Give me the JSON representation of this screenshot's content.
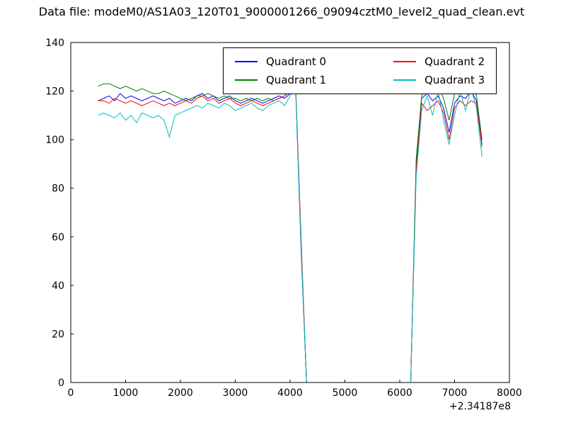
{
  "title": "Data file: modeM0/AS1A03_120T01_9000001266_09094cztM0_level2_quad_clean.evt",
  "chart_data": {
    "type": "line",
    "xlabel": "",
    "ylabel": "",
    "xlim": [
      0,
      8000
    ],
    "ylim": [
      0,
      140
    ],
    "xticks": [
      0,
      1000,
      2000,
      3000,
      4000,
      5000,
      6000,
      7000,
      8000
    ],
    "yticks": [
      0,
      20,
      40,
      60,
      80,
      100,
      120,
      140
    ],
    "x_offset_label": "+2.34187e8",
    "grid": false,
    "legend_position": "upper center",
    "x": [
      500,
      600,
      700,
      800,
      900,
      1000,
      1100,
      1200,
      1300,
      1400,
      1500,
      1600,
      1700,
      1800,
      1900,
      2000,
      2100,
      2200,
      2300,
      2400,
      2500,
      2600,
      2700,
      2800,
      2900,
      3000,
      3100,
      3200,
      3300,
      3400,
      3500,
      3600,
      3700,
      3800,
      3900,
      4000,
      4100,
      4200,
      4300,
      4400,
      4500,
      4600,
      4700,
      4800,
      4900,
      5000,
      5100,
      5200,
      5300,
      5400,
      5500,
      5600,
      5700,
      5800,
      5900,
      6000,
      6100,
      6200,
      6300,
      6400,
      6500,
      6600,
      6700,
      6800,
      6900,
      7000,
      7100,
      7200,
      7300,
      7400,
      7500
    ],
    "series": [
      {
        "name": "Quadrant 0",
        "color": "#0000ff",
        "values": [
          116,
          117,
          118,
          116,
          119,
          117,
          118,
          117,
          116,
          117,
          118,
          117,
          116,
          117,
          115,
          116,
          117,
          116,
          118,
          119,
          117,
          118,
          116,
          117,
          118,
          116,
          115,
          116,
          117,
          116,
          115,
          116,
          117,
          118,
          117,
          119,
          122,
          55,
          0,
          0,
          0,
          0,
          0,
          0,
          0,
          0,
          0,
          0,
          0,
          0,
          0,
          0,
          0,
          0,
          0,
          0,
          0,
          0,
          90,
          117,
          119,
          116,
          118,
          113,
          103,
          115,
          118,
          117,
          120,
          116,
          98
        ]
      },
      {
        "name": "Quadrant 1",
        "color": "#008000",
        "values": [
          122,
          123,
          123,
          122,
          121,
          122,
          121,
          120,
          121,
          120,
          119,
          119,
          120,
          119,
          118,
          117,
          116,
          117,
          118,
          118,
          119,
          118,
          117,
          118,
          117,
          117,
          116,
          117,
          116,
          117,
          116,
          117,
          116,
          117,
          118,
          120,
          123,
          58,
          0,
          0,
          0,
          0,
          0,
          0,
          0,
          0,
          0,
          0,
          0,
          0,
          0,
          0,
          0,
          0,
          0,
          0,
          0,
          0,
          92,
          118,
          121,
          119,
          122,
          117,
          108,
          119,
          121,
          119,
          122,
          118,
          100
        ]
      },
      {
        "name": "Quadrant 2",
        "color": "#ff0000",
        "values": [
          116,
          116,
          115,
          117,
          116,
          115,
          116,
          115,
          114,
          115,
          116,
          115,
          114,
          115,
          114,
          115,
          116,
          115,
          117,
          118,
          116,
          117,
          115,
          116,
          117,
          115,
          114,
          115,
          116,
          115,
          114,
          115,
          116,
          117,
          118,
          121,
          123,
          60,
          0,
          0,
          0,
          0,
          0,
          0,
          0,
          0,
          0,
          0,
          0,
          0,
          0,
          0,
          0,
          0,
          0,
          0,
          0,
          0,
          88,
          115,
          112,
          114,
          116,
          111,
          100,
          113,
          116,
          114,
          116,
          115,
          97
        ]
      },
      {
        "name": "Quadrant 3",
        "color": "#00bfbf",
        "values": [
          110,
          111,
          110,
          109,
          111,
          108,
          110,
          107,
          111,
          110,
          109,
          110,
          108,
          101,
          110,
          111,
          112,
          113,
          114,
          113,
          115,
          114,
          113,
          115,
          114,
          112,
          113,
          114,
          115,
          113,
          112,
          114,
          115,
          116,
          114,
          118,
          122,
          57,
          0,
          0,
          0,
          0,
          0,
          0,
          0,
          0,
          0,
          0,
          0,
          0,
          0,
          0,
          0,
          0,
          0,
          0,
          0,
          0,
          85,
          112,
          118,
          110,
          120,
          108,
          98,
          110,
          120,
          112,
          121,
          113,
          93
        ]
      }
    ]
  }
}
